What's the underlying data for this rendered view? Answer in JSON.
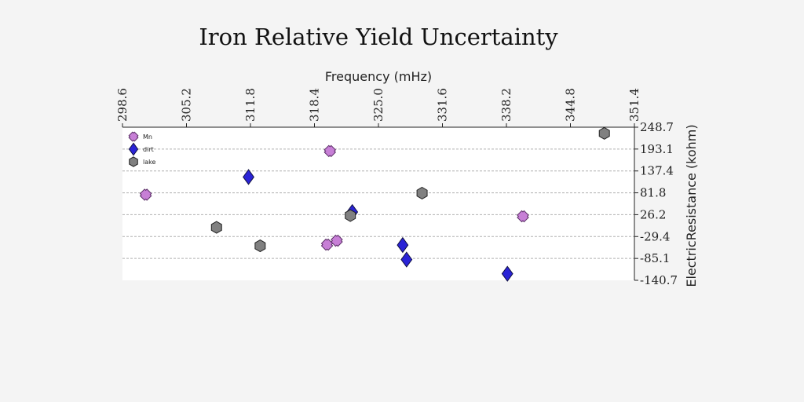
{
  "chart_data": {
    "type": "scatter",
    "title": "Iron Relative Yield Uncertainty",
    "xlabel": "Frequency (mHz)",
    "ylabel": "ElectricResistance (kohm)",
    "x_ticks": [
      "298.6",
      "305.2",
      "311.8",
      "318.4",
      "325.0",
      "331.6",
      "338.2",
      "344.8",
      "351.4"
    ],
    "y_ticks": [
      "248.7",
      "193.1",
      "137.4",
      "81.8",
      "26.2",
      "-29.4",
      "-85.1",
      "-140.7"
    ],
    "xlim": [
      298.6,
      351.4
    ],
    "ylim": [
      -140.7,
      248.7
    ],
    "grid": "horizontal dashed",
    "legend_position": "top-left",
    "series": [
      {
        "name": "Mn",
        "marker": "x",
        "color": "#c77fd6",
        "points": [
          {
            "x": 301.0,
            "y": 77
          },
          {
            "x": 320.0,
            "y": 188
          },
          {
            "x": 319.7,
            "y": -50
          },
          {
            "x": 320.7,
            "y": -40
          },
          {
            "x": 339.9,
            "y": 22
          }
        ]
      },
      {
        "name": "dirt",
        "marker": "diamond",
        "color": "#2a23d6",
        "points": [
          {
            "x": 311.6,
            "y": 122
          },
          {
            "x": 322.3,
            "y": 33
          },
          {
            "x": 327.5,
            "y": -51
          },
          {
            "x": 327.9,
            "y": -88
          },
          {
            "x": 338.3,
            "y": -124
          }
        ]
      },
      {
        "name": "lake",
        "marker": "hexagon",
        "color": "#808080",
        "points": [
          {
            "x": 348.3,
            "y": 233
          },
          {
            "x": 329.5,
            "y": 81
          },
          {
            "x": 322.1,
            "y": 24
          },
          {
            "x": 308.3,
            "y": -6
          },
          {
            "x": 312.8,
            "y": -53
          }
        ]
      }
    ]
  }
}
